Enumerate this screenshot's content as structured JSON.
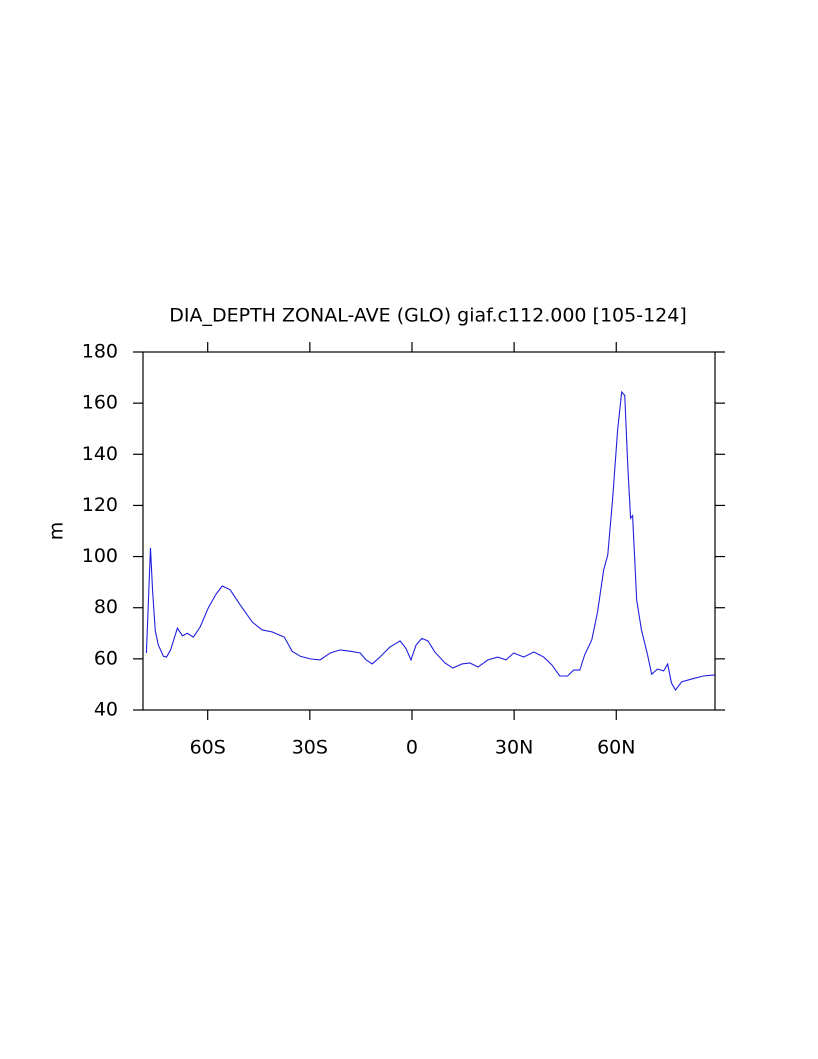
{
  "chart_data": {
    "type": "line",
    "title": "DIA_DEPTH ZONAL-AVE (GLO) giaf.c112.000 [105-124]",
    "ylabel": "m",
    "color": "#1f1fe0",
    "x": [
      -78,
      -77.4,
      -76.8,
      -76.2,
      -75.4,
      -74.5,
      -73,
      -72.1,
      -70.9,
      -68.9,
      -67.4,
      -66,
      -64.2,
      -62.2,
      -59.8,
      -57.5,
      -55.7,
      -53.4,
      -50.4,
      -46.9,
      -44,
      -41,
      -37.5,
      -35.2,
      -32.8,
      -29.9,
      -27,
      -24,
      -21.1,
      -18.2,
      -15.2,
      -13.5,
      -11.7,
      -9.4,
      -6.5,
      -3.5,
      -1.8,
      -0.3,
      1.2,
      2.9,
      4.7,
      6.7,
      9.7,
      12,
      14.7,
      17,
      19.4,
      22.3,
      25.2,
      27.6,
      29.9,
      32.8,
      35.8,
      38.7,
      41.1,
      43.4,
      45.7,
      47.5,
      49.3,
      50.7,
      52.8,
      54.5,
      56.3,
      57.5,
      58.9,
      60.4,
      61.6,
      62.5,
      63.3,
      64.2,
      64.8,
      66,
      67.4,
      69.2,
      70.4,
      72.1,
      73.9,
      75.1,
      76.2,
      77.4,
      79.2,
      82.1,
      85.6,
      88.9
    ],
    "values": [
      62.3,
      83,
      103.4,
      87,
      71,
      65.4,
      61,
      60.7,
      63.5,
      72,
      69,
      70,
      68.5,
      72.5,
      80,
      85.4,
      88.5,
      87,
      81,
      74.4,
      71.3,
      70.5,
      68.5,
      63,
      61,
      60,
      59.6,
      62.3,
      63.5,
      63,
      62.3,
      59.6,
      58,
      60.7,
      64.6,
      67,
      64.2,
      59.6,
      65.4,
      68,
      67,
      62.7,
      58.4,
      56.4,
      58,
      58.4,
      56.8,
      59.6,
      60.7,
      59.6,
      62.3,
      60.7,
      62.7,
      60.7,
      57.6,
      53.3,
      53.3,
      55.6,
      55.6,
      61.5,
      67.4,
      78.3,
      94.8,
      100.6,
      122,
      149.5,
      164.4,
      163,
      137.8,
      115,
      116,
      83,
      71.3,
      61.5,
      54,
      56,
      55.3,
      58,
      50.6,
      47.8,
      51,
      52.1,
      53.3,
      53.7
    ],
    "xlim": [
      -79,
      89
    ],
    "ylim": [
      40,
      180
    ],
    "xticks": [
      {
        "value": -60,
        "label": "60S"
      },
      {
        "value": -30,
        "label": "30S"
      },
      0,
      {
        "value": 30,
        "label": "30N"
      },
      {
        "value": 60,
        "label": "60N"
      }
    ],
    "yticks": [
      40,
      60,
      80,
      100,
      120,
      140,
      160,
      180
    ]
  }
}
